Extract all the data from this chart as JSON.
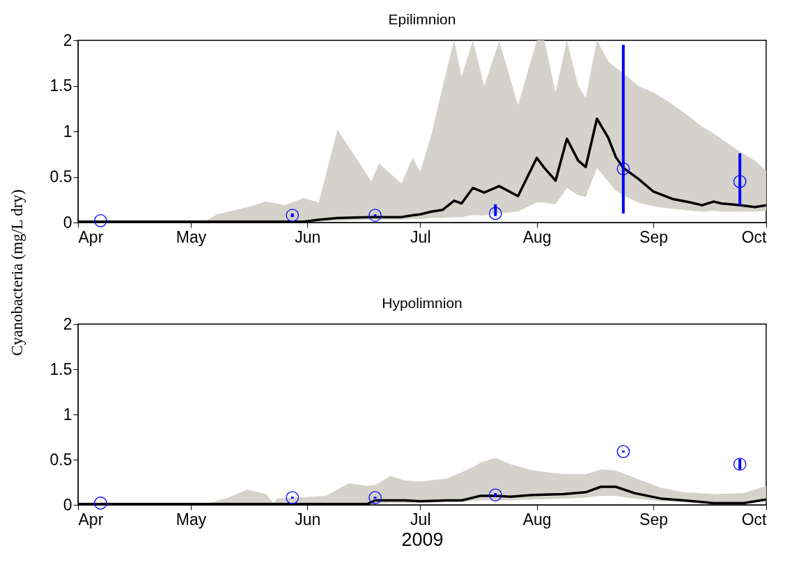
{
  "chart_data": [
    {
      "type": "line",
      "title": "Epilimnion",
      "ylabel": "Cyanobacteria (mg/L dry)",
      "xlim": [
        "2009-04-01",
        "2009-10-01"
      ],
      "xticks": [
        {
          "value": "2009-04-01",
          "label": "Apr"
        },
        {
          "value": "2009-05-01",
          "label": "May"
        },
        {
          "value": "2009-06-01",
          "label": "Jun"
        },
        {
          "value": "2009-07-01",
          "label": "Jul"
        },
        {
          "value": "2009-08-01",
          "label": "Aug"
        },
        {
          "value": "2009-09-01",
          "label": "Sep"
        },
        {
          "value": "2009-10-01",
          "label": "Oct"
        }
      ],
      "ylim": [
        0,
        2
      ],
      "yticks": [
        0,
        0.5,
        1,
        1.5,
        2
      ],
      "series": [
        {
          "type": "line",
          "color": "#000000",
          "x": [
            "2009-04-01",
            "2009-05-05",
            "2009-05-08",
            "2009-05-17",
            "2009-05-21",
            "2009-05-26",
            "2009-05-31",
            "2009-06-04",
            "2009-06-09",
            "2009-06-18",
            "2009-06-20",
            "2009-06-26",
            "2009-06-29",
            "2009-07-01",
            "2009-07-04",
            "2009-07-07",
            "2009-07-10",
            "2009-07-12",
            "2009-07-15",
            "2009-07-18",
            "2009-07-22",
            "2009-07-27",
            "2009-08-01",
            "2009-08-03",
            "2009-08-06",
            "2009-08-09",
            "2009-08-12",
            "2009-08-14",
            "2009-08-17",
            "2009-08-20",
            "2009-08-22",
            "2009-08-24",
            "2009-08-28",
            "2009-09-01",
            "2009-09-06",
            "2009-09-11",
            "2009-09-14",
            "2009-09-17",
            "2009-09-19",
            "2009-09-24",
            "2009-09-28",
            "2009-10-01"
          ],
          "values": [
            0.01,
            0.01,
            0.01,
            0.01,
            0.01,
            0.01,
            0.01,
            0.03,
            0.05,
            0.06,
            0.06,
            0.06,
            0.08,
            0.09,
            0.12,
            0.14,
            0.24,
            0.21,
            0.38,
            0.33,
            0.4,
            0.29,
            0.71,
            0.6,
            0.46,
            0.92,
            0.68,
            0.61,
            1.14,
            0.93,
            0.72,
            0.6,
            0.48,
            0.34,
            0.26,
            0.22,
            0.19,
            0.23,
            0.21,
            0.19,
            0.17,
            0.19
          ],
          "lower": [
            0.01,
            0.01,
            0.01,
            0.01,
            0.01,
            0.01,
            0.01,
            0.01,
            0.02,
            0.03,
            0.03,
            0.03,
            0.04,
            0.04,
            0.05,
            0.05,
            0.06,
            0.06,
            0.08,
            0.08,
            0.1,
            0.12,
            0.22,
            0.22,
            0.2,
            0.38,
            0.3,
            0.28,
            0.6,
            0.45,
            0.35,
            0.3,
            0.22,
            0.18,
            0.15,
            0.13,
            0.12,
            0.13,
            0.12,
            0.12,
            0.12,
            0.13
          ],
          "upper": [
            0.01,
            0.02,
            0.09,
            0.18,
            0.23,
            0.19,
            0.27,
            0.22,
            1.02,
            0.45,
            0.65,
            0.43,
            0.71,
            0.56,
            0.97,
            1.5,
            2,
            1.6,
            2,
            1.5,
            1.99,
            1.29,
            2,
            2,
            1.43,
            2,
            1.5,
            1.37,
            2,
            1.77,
            1.7,
            1.64,
            1.5,
            1.43,
            1.3,
            1.15,
            1.05,
            0.98,
            0.92,
            0.78,
            0.68,
            0.57
          ]
        },
        {
          "type": "scatter",
          "color": "#0000ff",
          "marker": "circle",
          "x": [
            "2009-04-07",
            "2009-05-28",
            "2009-06-19",
            "2009-07-21",
            "2009-08-24",
            "2009-09-24"
          ],
          "values": [
            0.02,
            0.08,
            0.08,
            0.1,
            0.59,
            0.45
          ],
          "errors": [
            null,
            [
              0.06,
              0.1
            ],
            [
              0.07,
              0.09
            ],
            [
              0.07,
              0.2
            ],
            [
              0.1,
              1.95
            ],
            [
              0.19,
              0.76
            ]
          ]
        }
      ]
    },
    {
      "type": "line",
      "title": "Hypolimnion",
      "xlabel": "2009",
      "xlim": [
        "2009-04-01",
        "2009-10-01"
      ],
      "xticks": [
        {
          "value": "2009-04-01",
          "label": "Apr"
        },
        {
          "value": "2009-05-01",
          "label": "May"
        },
        {
          "value": "2009-06-01",
          "label": "Jun"
        },
        {
          "value": "2009-07-01",
          "label": "Jul"
        },
        {
          "value": "2009-08-01",
          "label": "Aug"
        },
        {
          "value": "2009-09-01",
          "label": "Sep"
        },
        {
          "value": "2009-10-01",
          "label": "Oct"
        }
      ],
      "ylim": [
        0,
        2
      ],
      "yticks": [
        0,
        0.5,
        1,
        1.5,
        2
      ],
      "series": [
        {
          "type": "line",
          "color": "#000000",
          "x": [
            "2009-04-01",
            "2009-05-05",
            "2009-05-11",
            "2009-05-16",
            "2009-05-21",
            "2009-05-23",
            "2009-05-24",
            "2009-06-06",
            "2009-06-12",
            "2009-06-17",
            "2009-06-19",
            "2009-06-23",
            "2009-06-27",
            "2009-07-01",
            "2009-07-08",
            "2009-07-12",
            "2009-07-15",
            "2009-07-17",
            "2009-07-21",
            "2009-07-25",
            "2009-07-31",
            "2009-08-08",
            "2009-08-14",
            "2009-08-18",
            "2009-08-22",
            "2009-08-27",
            "2009-09-03",
            "2009-09-09",
            "2009-09-17",
            "2009-09-25",
            "2009-10-01"
          ],
          "values": [
            0.01,
            0.01,
            0.01,
            0.01,
            0.01,
            0.01,
            0.01,
            0.01,
            0.01,
            0.01,
            0.05,
            0.05,
            0.05,
            0.04,
            0.05,
            0.05,
            0.08,
            0.1,
            0.1,
            0.09,
            0.11,
            0.12,
            0.14,
            0.2,
            0.2,
            0.13,
            0.07,
            0.05,
            0.02,
            0.02,
            0.06
          ],
          "lower": [
            0.01,
            0.01,
            0.01,
            0.01,
            0.01,
            0.01,
            0.01,
            0.01,
            0.01,
            0.01,
            0.01,
            0.02,
            0.02,
            0.02,
            0.03,
            0.03,
            0.04,
            0.05,
            0.05,
            0.05,
            0.06,
            0.07,
            0.08,
            0.1,
            0.1,
            0.07,
            0.04,
            0.03,
            0.01,
            0.01,
            0.04
          ],
          "upper": [
            0.01,
            0.01,
            0.08,
            0.17,
            0.12,
            0.02,
            0.07,
            0.1,
            0.24,
            0.21,
            0.22,
            0.32,
            0.27,
            0.26,
            0.29,
            0.36,
            0.42,
            0.47,
            0.52,
            0.45,
            0.38,
            0.34,
            0.34,
            0.39,
            0.38,
            0.3,
            0.19,
            0.14,
            0.12,
            0.13,
            0.21
          ]
        },
        {
          "type": "scatter",
          "color": "#0000ff",
          "marker": "circle",
          "x": [
            "2009-04-07",
            "2009-05-28",
            "2009-06-19",
            "2009-07-21",
            "2009-08-24",
            "2009-09-24"
          ],
          "values": [
            0.02,
            0.08,
            0.08,
            0.11,
            0.59,
            0.45
          ],
          "errors": [
            null,
            [
              0.07,
              0.09
            ],
            [
              0.07,
              0.09
            ],
            [
              0.09,
              0.13
            ],
            [
              0.58,
              0.6
            ],
            [
              0.39,
              0.51
            ]
          ]
        }
      ]
    }
  ]
}
